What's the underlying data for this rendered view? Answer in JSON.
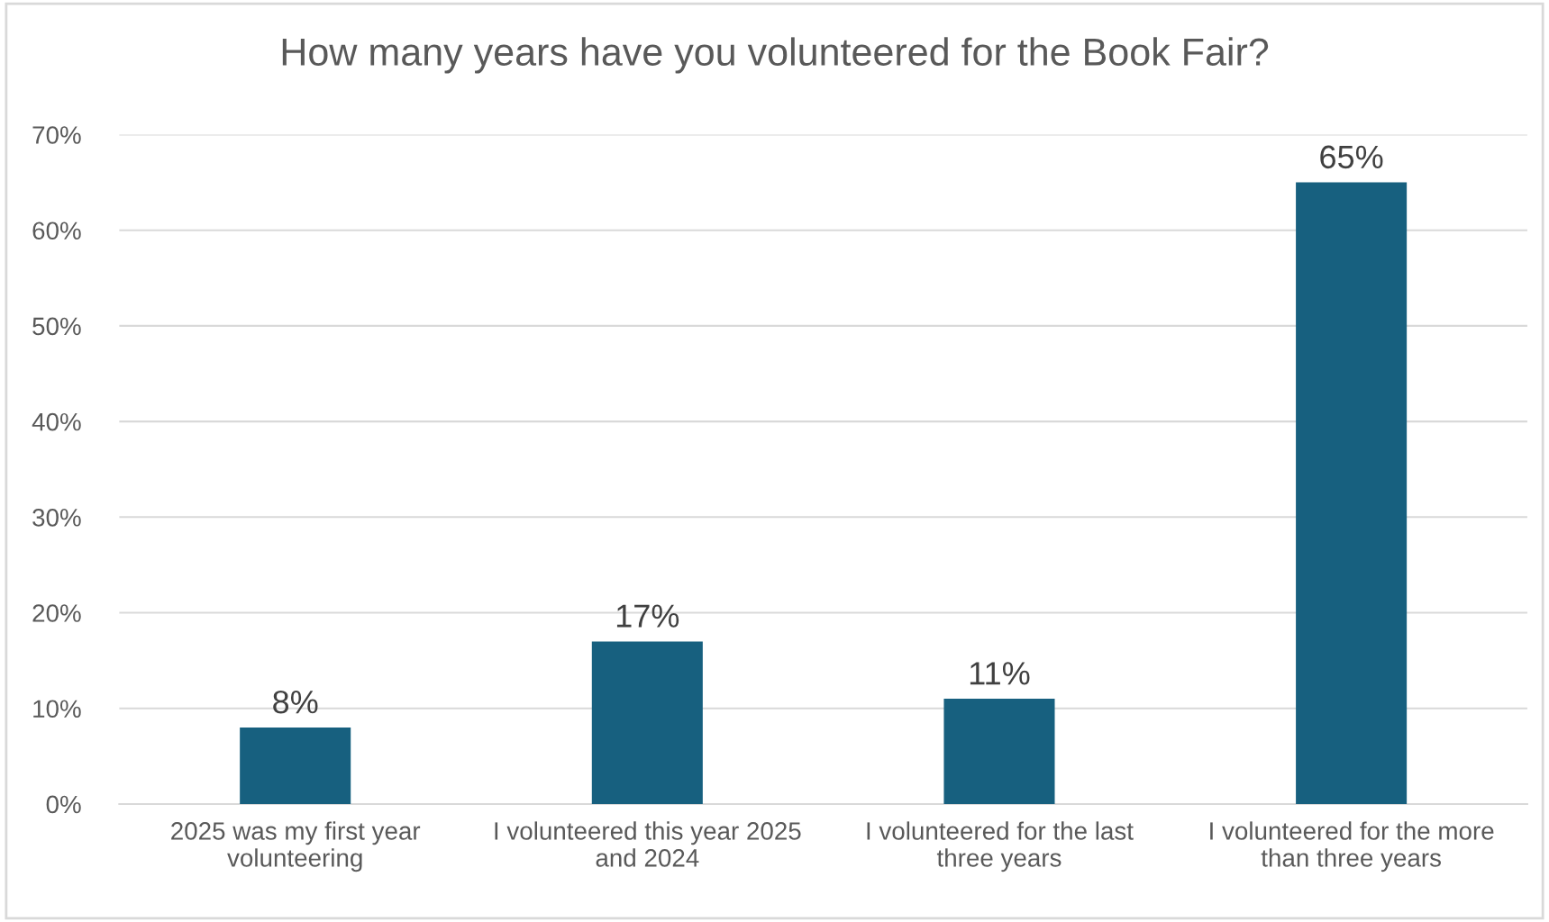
{
  "chart_data": {
    "type": "bar",
    "title": "How many years have you volunteered for the Book Fair?",
    "categories": [
      "2025 was my first year\nvolunteering",
      "I volunteered this year 2025\nand 2024",
      "I volunteered for the last\nthree years",
      "I volunteered for the more\nthan three years"
    ],
    "values": [
      8,
      17,
      11,
      65
    ],
    "color": "#17607f",
    "value_labels": [
      "8%",
      "17%",
      "11%",
      "65%"
    ],
    "ylim": [
      0,
      70
    ],
    "yticks": [
      {
        "value": 0,
        "label": "0%"
      },
      {
        "value": 10,
        "label": "10%"
      },
      {
        "value": 20,
        "label": "20%"
      },
      {
        "value": 30,
        "label": "30%"
      },
      {
        "value": 40,
        "label": "40%"
      },
      {
        "value": 50,
        "label": "50%"
      },
      {
        "value": 60,
        "label": "60%"
      },
      {
        "value": 70,
        "label": "70%"
      }
    ],
    "grid": "y",
    "legend": false
  }
}
